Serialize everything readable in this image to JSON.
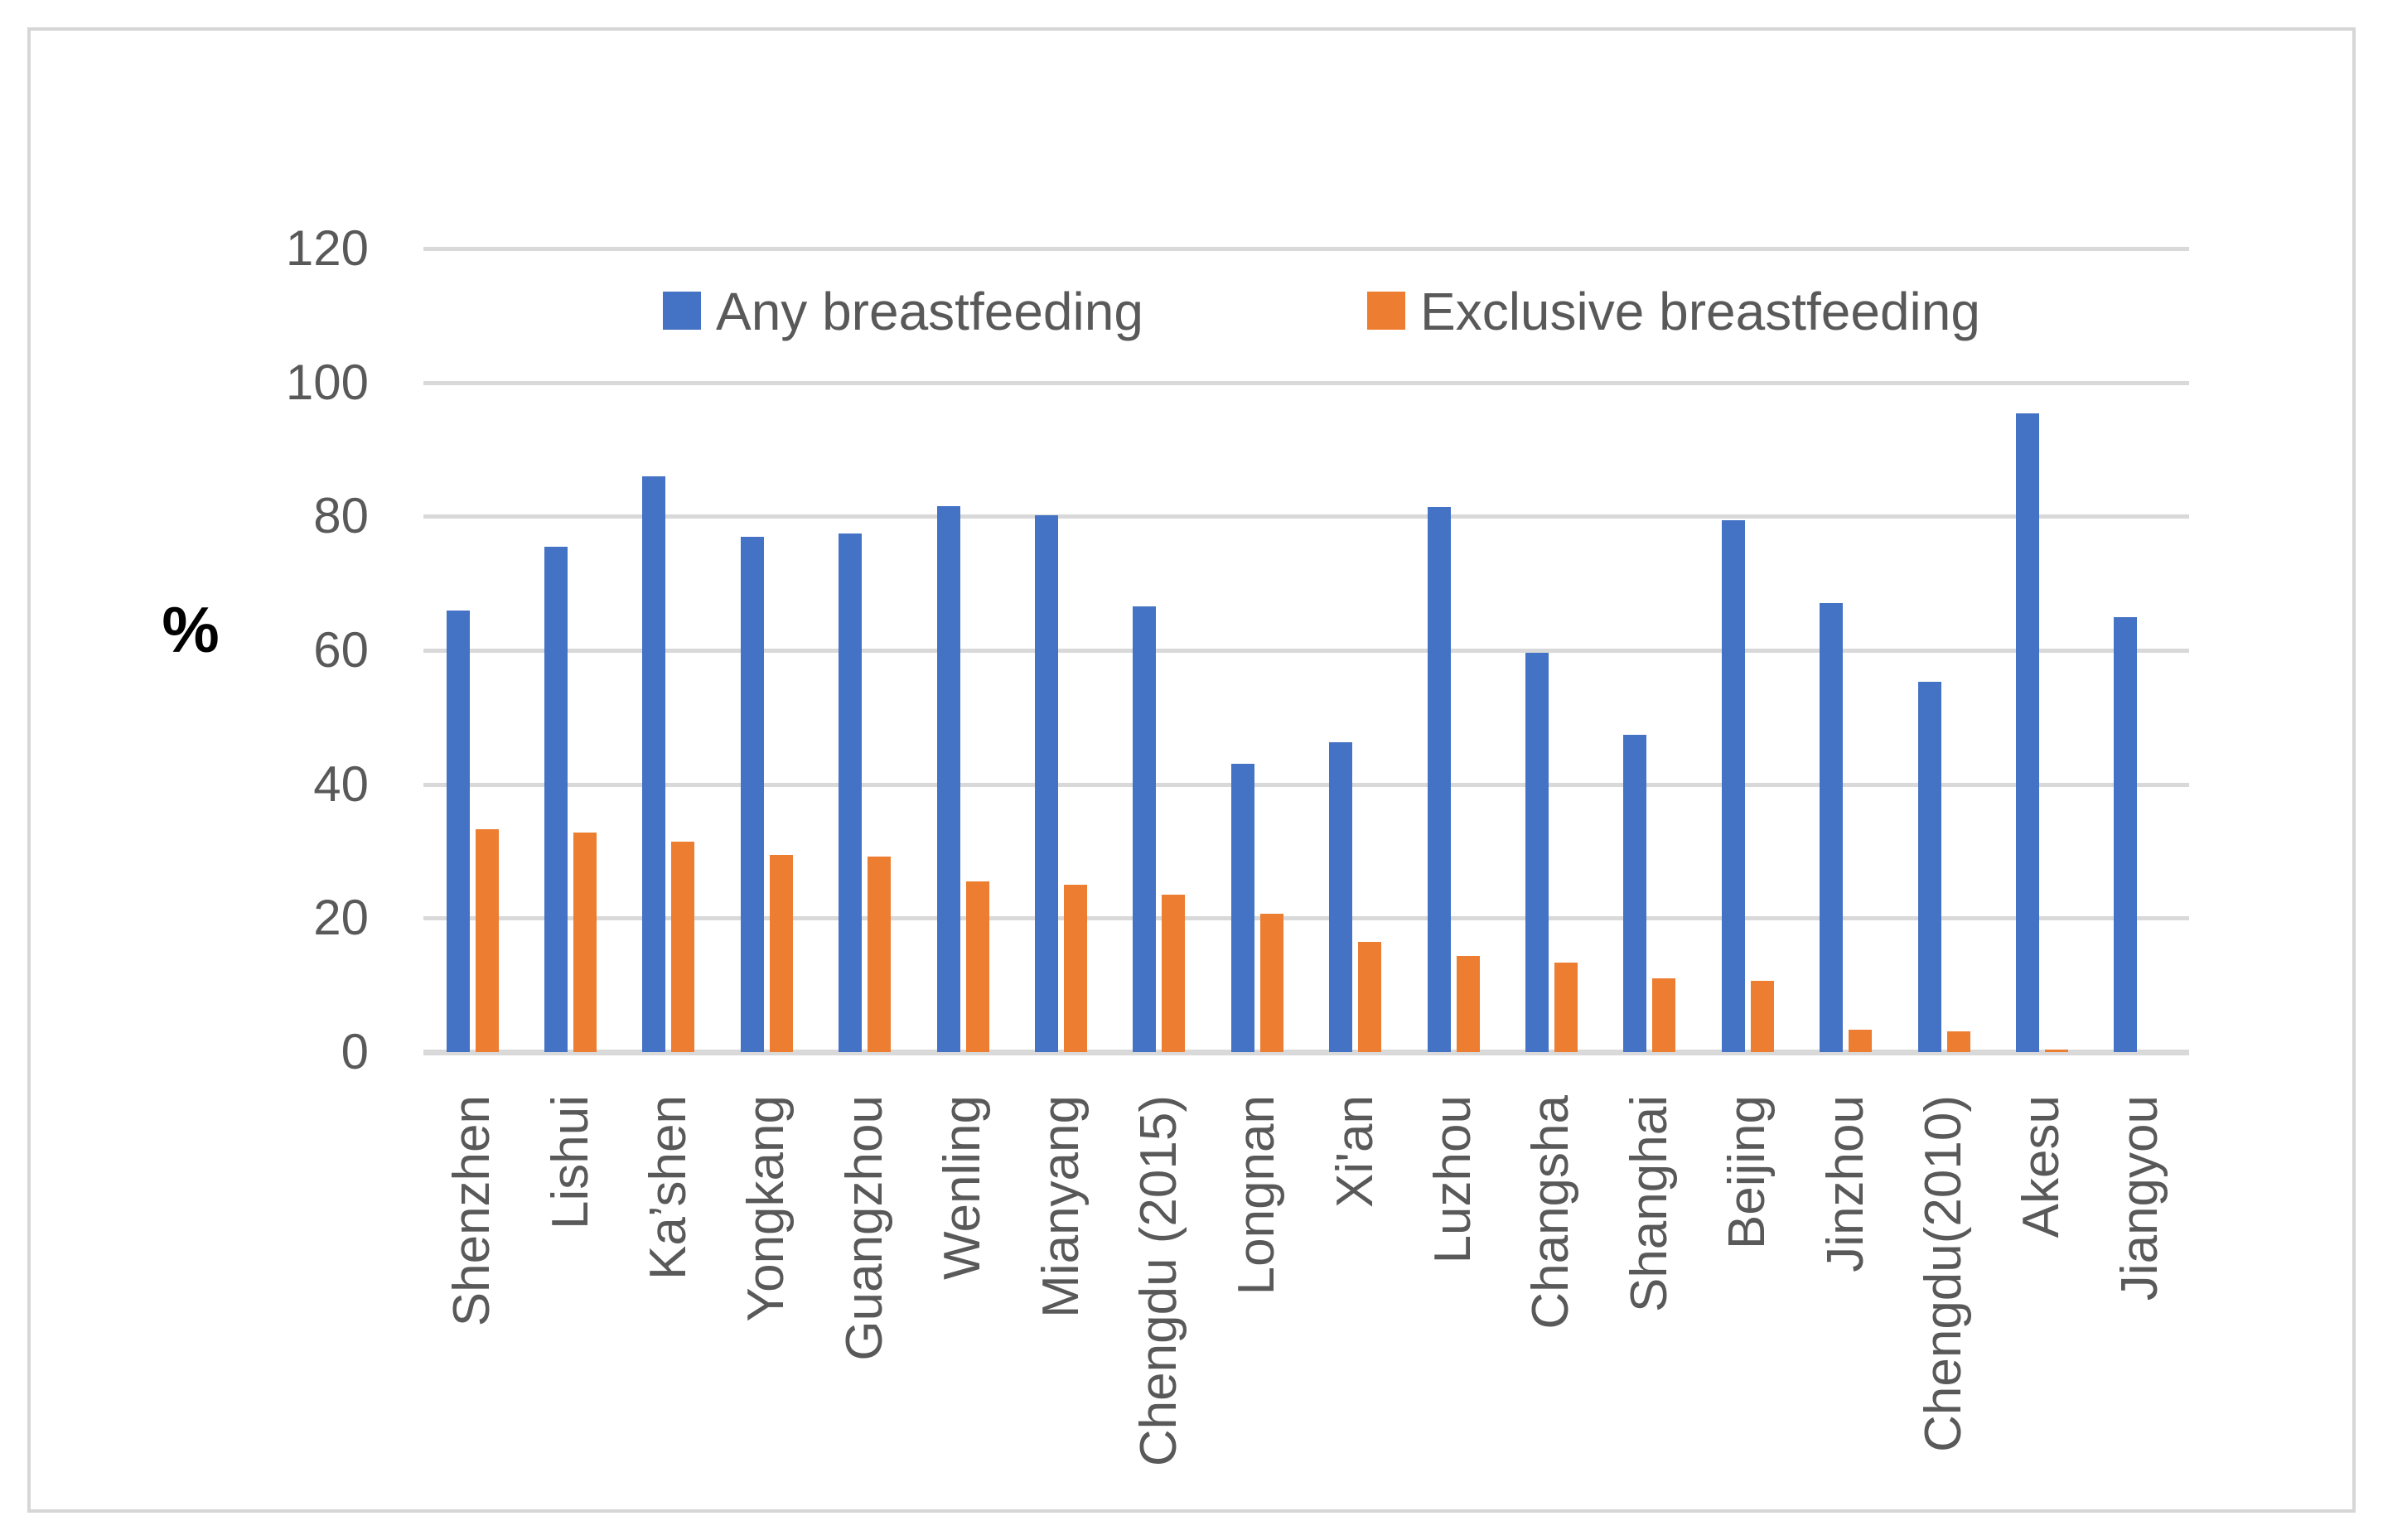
{
  "figure": {
    "background_color": "#ffffff",
    "frame_color": "#d6d6d6",
    "gridline_color": "#d9d9d9",
    "text_color": "#595959"
  },
  "legend": {
    "any_label": "Any breastfeeding",
    "exclusive_label": "Exclusive breastfeeding"
  },
  "chart_data": {
    "type": "bar",
    "title": "",
    "xlabel": "",
    "ylabel": "%",
    "ylim": [
      0,
      120
    ],
    "yticks": [
      0,
      20,
      40,
      60,
      80,
      100,
      120
    ],
    "grid": "horizontal",
    "legend_position": "top-inside",
    "categories": [
      "Shenzhen",
      "Lishui",
      "Ka’shen",
      "Yongkang",
      "Guangzhou",
      "Wenling",
      "Mianyang",
      "Chengdu (2015)",
      "Longnan",
      "Xi'an",
      "Luzhou",
      "Changsha",
      "Shanghai",
      "Beijing",
      "Jinzhou",
      "Chengdu(2010)",
      "Akesu",
      "Jiangyou"
    ],
    "series": [
      {
        "name": "Any breastfeeding",
        "color": "#4472C4",
        "values": [
          66,
          75.5,
          86,
          77,
          77.4,
          81.5,
          80.2,
          66.6,
          43,
          46.3,
          81.4,
          59.6,
          47.4,
          79.4,
          67,
          55.3,
          95.4,
          65
        ]
      },
      {
        "name": "Exclusive breastfeeding",
        "color": "#ED7D31",
        "values": [
          33.3,
          32.8,
          31.4,
          29.5,
          29.2,
          25.5,
          25,
          23.5,
          20.7,
          16.4,
          14.3,
          13.4,
          11,
          10.7,
          3.3,
          3.1,
          0.4,
          0
        ]
      }
    ]
  }
}
